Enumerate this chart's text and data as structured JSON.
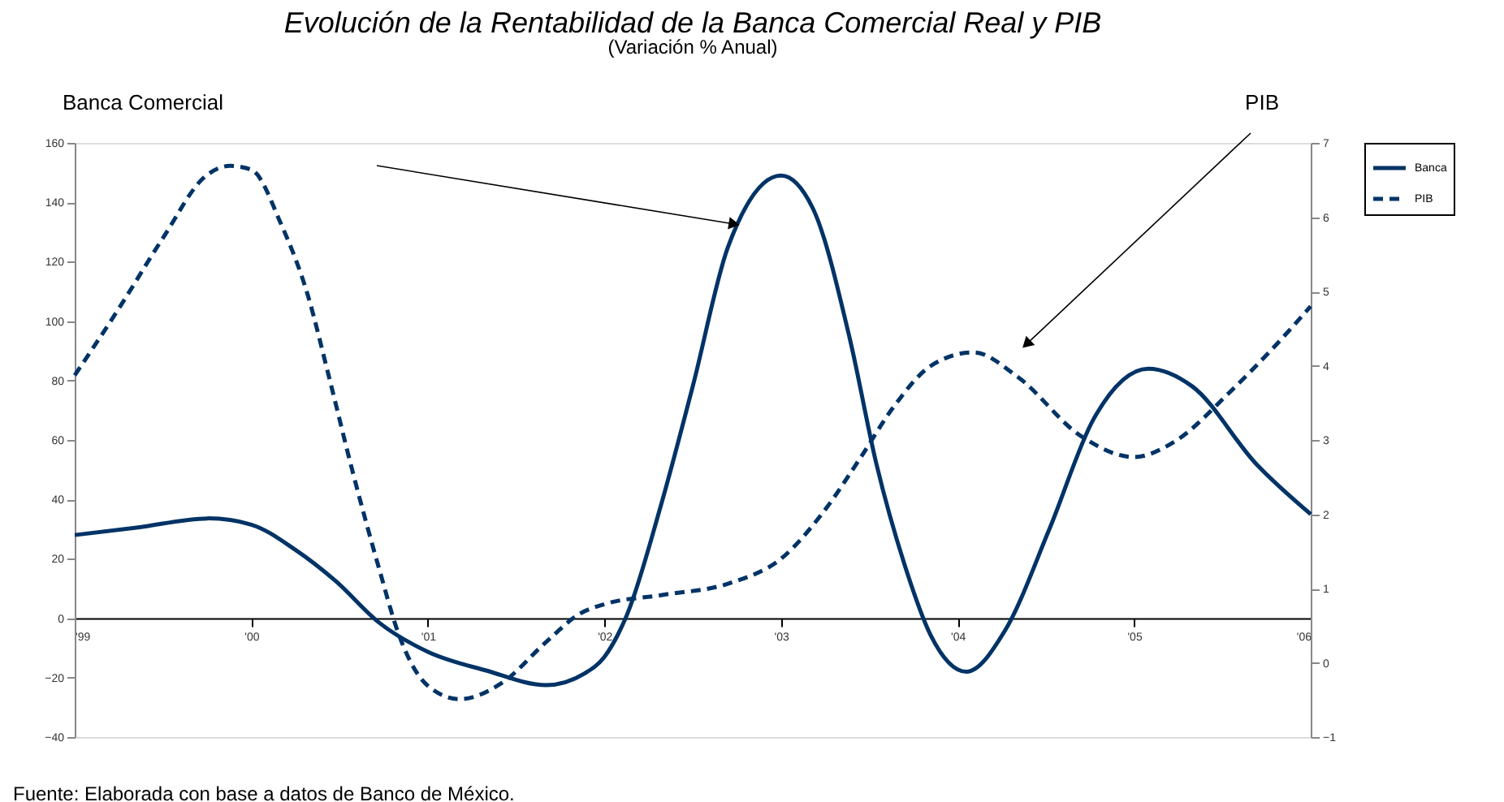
{
  "chart_data": {
    "type": "line",
    "title": "Evolución de la Rentabilidad de la Banca Comercial Real y PIB",
    "subtitle": "(Variación % Anual)",
    "ylabel": "Banca Comercial",
    "y2label": "PIB",
    "xlim": [
      1999,
      2006
    ],
    "xticks": [
      {
        "value": 1999,
        "label": "'99"
      },
      {
        "value": 2000,
        "label": "'00"
      },
      {
        "value": 2001,
        "label": "'01"
      },
      {
        "value": 2002,
        "label": "'02"
      },
      {
        "value": 2003,
        "label": "'03"
      },
      {
        "value": 2004,
        "label": "'04"
      },
      {
        "value": 2005,
        "label": "'05"
      },
      {
        "value": 2006,
        "label": "'06"
      }
    ],
    "ylim": [
      -40,
      160
    ],
    "yticks": [
      -40,
      -20,
      0,
      20,
      40,
      60,
      80,
      100,
      120,
      140,
      160
    ],
    "y2lim": [
      -1,
      7
    ],
    "y2ticks": [
      -1,
      0,
      1,
      2,
      3,
      4,
      5,
      6,
      7
    ],
    "series": [
      {
        "name": "Banca",
        "color": "#003366",
        "line_style": "solid",
        "x": [
          1999.0,
          1999.35,
          1999.76,
          2000.0,
          2000.25,
          2000.48,
          2000.72,
          2001.0,
          2001.33,
          2001.67,
          2001.89,
          2002.0,
          2002.13,
          2002.32,
          2002.5,
          2002.7,
          2003.0,
          2003.18,
          2003.39,
          2003.54,
          2003.7,
          2003.85,
          2004.05,
          2004.27,
          2004.52,
          2004.77,
          2005.08,
          2005.33,
          2005.69,
          2006.0
        ],
        "values": [
          28,
          30.5,
          33.6,
          31.5,
          23,
          12.4,
          -1.3,
          -11.3,
          -17.6,
          -22.5,
          -18.5,
          -13,
          1.5,
          38,
          78,
          125,
          149,
          138,
          94,
          52,
          18,
          -6,
          -18,
          -4,
          30,
          67,
          84,
          78,
          52,
          35
        ]
      },
      {
        "name": "PIB",
        "color": "#003366",
        "line_style": "dashed",
        "axis": "y2",
        "x": [
          1999.0,
          1999.25,
          1999.5,
          1999.74,
          1999.88,
          2000.0,
          2000.17,
          2000.32,
          2000.44,
          2000.57,
          2000.72,
          2000.84,
          2001.0,
          2001.18,
          2001.42,
          2001.67,
          2001.86,
          2002.0,
          2002.32,
          2002.72,
          2003.0,
          2003.24,
          2003.45,
          2003.63,
          2003.85,
          2004.09,
          2004.34,
          2004.7,
          2005.0,
          2005.23,
          2005.54,
          2005.78,
          2006.0
        ],
        "values": [
          3.87,
          4.77,
          5.72,
          6.55,
          6.69,
          6.64,
          5.9,
          4.95,
          3.85,
          2.61,
          1.3,
          0.35,
          -0.31,
          -0.49,
          -0.27,
          0.28,
          0.66,
          0.79,
          0.91,
          1.08,
          1.4,
          2.03,
          2.76,
          3.42,
          4.0,
          4.18,
          3.85,
          3.05,
          2.77,
          2.98,
          3.64,
          4.22,
          4.8
        ]
      }
    ],
    "legend": "right",
    "grid": false,
    "marker": "none",
    "annotations": [
      "Fuente: Elaborada con base a datos de Banco de México."
    ]
  }
}
